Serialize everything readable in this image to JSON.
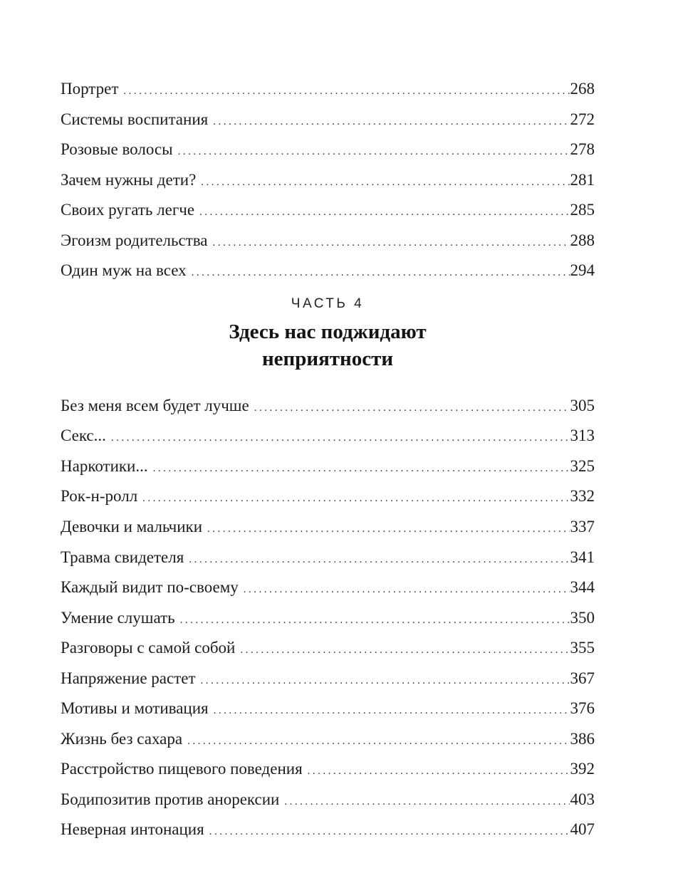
{
  "page": {
    "background": "#ffffff",
    "text_color": "#1c1c1c"
  },
  "part_heading": {
    "kicker": "ЧАСТЬ 4",
    "title_line1": "Здесь нас поджидают",
    "title_line2": "неприятности"
  },
  "toc_top": {
    "entries": [
      {
        "title": "Портрет",
        "page": "268"
      },
      {
        "title": "Системы воспитания",
        "page": "272"
      },
      {
        "title": "Розовые волосы",
        "page": "278"
      },
      {
        "title": "Зачем нужны дети?",
        "page": "281"
      },
      {
        "title": "Своих ругать легче",
        "page": "285"
      },
      {
        "title": "Эгоизм родительства",
        "page": "288"
      },
      {
        "title": "Один муж на всех",
        "page": "294"
      }
    ]
  },
  "toc_bottom": {
    "entries": [
      {
        "title": "Без меня всем будет лучше",
        "page": "305"
      },
      {
        "title": "Секс...",
        "page": "313"
      },
      {
        "title": "Наркотики...",
        "page": "325"
      },
      {
        "title": "Рок-н-ролл",
        "page": "332"
      },
      {
        "title": "Девочки и мальчики",
        "page": "337"
      },
      {
        "title": "Травма свидетеля",
        "page": "341"
      },
      {
        "title": "Каждый видит по-своему",
        "page": "344"
      },
      {
        "title": "Умение слушать",
        "page": "350"
      },
      {
        "title": "Разговоры с самой собой",
        "page": "355"
      },
      {
        "title": "Напряжение растет",
        "page": "367"
      },
      {
        "title": "Мотивы и мотивация",
        "page": "376"
      },
      {
        "title": "Жизнь без сахара",
        "page": "386"
      },
      {
        "title": "Расстройство пищевого поведения",
        "page": "392"
      },
      {
        "title": "Бодипозитив против анорексии",
        "page": "403"
      },
      {
        "title": "Неверная интонация",
        "page": "407"
      }
    ]
  }
}
